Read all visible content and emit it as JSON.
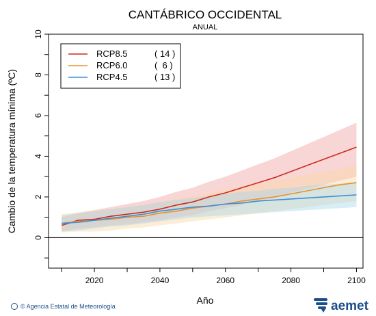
{
  "chart_data": {
    "type": "line",
    "title": "CANTÁBRICO OCCIDENTAL",
    "subtitle": "ANUAL",
    "xlabel": "Año",
    "ylabel": "Cambio de la temperatura mínima (ºC)",
    "xlim": [
      2006,
      2102
    ],
    "ylim": [
      -1.5,
      10
    ],
    "xticks": [
      2020,
      2040,
      2060,
      2080,
      2100
    ],
    "yticks": [
      0,
      2,
      4,
      6,
      8,
      10
    ],
    "zero_line": 0,
    "legend_position": "top-left",
    "series": [
      {
        "name": "RCP8.5",
        "count": "( 14 )",
        "color": "#cc2a1c",
        "band_color": "#f2a3a3",
        "x": [
          2010,
          2015,
          2020,
          2025,
          2030,
          2035,
          2040,
          2045,
          2050,
          2055,
          2060,
          2065,
          2070,
          2075,
          2080,
          2085,
          2090,
          2095,
          2100
        ],
        "mean": [
          0.6,
          0.85,
          0.9,
          1.05,
          1.15,
          1.25,
          1.4,
          1.6,
          1.75,
          2.0,
          2.2,
          2.45,
          2.7,
          2.95,
          3.25,
          3.55,
          3.85,
          4.15,
          4.45
        ],
        "low": [
          0.3,
          0.45,
          0.5,
          0.6,
          0.65,
          0.75,
          0.85,
          1.0,
          1.1,
          1.3,
          1.45,
          1.6,
          1.8,
          2.0,
          2.2,
          2.4,
          2.6,
          2.8,
          3.0
        ],
        "high": [
          1.0,
          1.2,
          1.35,
          1.5,
          1.65,
          1.8,
          2.0,
          2.25,
          2.45,
          2.75,
          3.0,
          3.3,
          3.6,
          3.9,
          4.25,
          4.6,
          4.95,
          5.3,
          5.65
        ]
      },
      {
        "name": "RCP6.0",
        "count": "(  6 )",
        "color": "#e8912c",
        "band_color": "#f9d7a3",
        "x": [
          2010,
          2015,
          2020,
          2025,
          2030,
          2035,
          2040,
          2045,
          2050,
          2055,
          2060,
          2065,
          2070,
          2075,
          2080,
          2085,
          2090,
          2095,
          2100
        ],
        "mean": [
          0.7,
          0.8,
          0.85,
          0.9,
          1.0,
          1.05,
          1.2,
          1.3,
          1.45,
          1.55,
          1.65,
          1.8,
          1.9,
          2.0,
          2.15,
          2.3,
          2.45,
          2.6,
          2.7
        ],
        "low": [
          0.25,
          0.3,
          0.3,
          0.35,
          0.45,
          0.5,
          0.6,
          0.7,
          0.8,
          0.9,
          1.0,
          1.1,
          1.2,
          1.3,
          1.4,
          1.5,
          1.6,
          1.7,
          1.8
        ],
        "high": [
          1.15,
          1.25,
          1.35,
          1.4,
          1.5,
          1.6,
          1.75,
          1.9,
          2.05,
          2.2,
          2.35,
          2.5,
          2.65,
          2.8,
          2.95,
          3.1,
          3.25,
          3.4,
          3.55
        ]
      },
      {
        "name": "RCP4.5",
        "count": "( 13 )",
        "color": "#3a8fd8",
        "band_color": "#a9d6ea",
        "x": [
          2010,
          2015,
          2020,
          2025,
          2030,
          2035,
          2040,
          2045,
          2050,
          2055,
          2060,
          2065,
          2070,
          2075,
          2080,
          2085,
          2090,
          2095,
          2100
        ],
        "mean": [
          0.7,
          0.75,
          0.85,
          0.95,
          1.05,
          1.15,
          1.3,
          1.4,
          1.5,
          1.55,
          1.65,
          1.7,
          1.8,
          1.85,
          1.9,
          1.95,
          2.0,
          2.05,
          2.1
        ],
        "low": [
          0.3,
          0.35,
          0.45,
          0.55,
          0.6,
          0.7,
          0.8,
          0.9,
          1.0,
          1.05,
          1.1,
          1.15,
          1.2,
          1.25,
          1.3,
          1.35,
          1.4,
          1.45,
          1.5
        ],
        "high": [
          1.1,
          1.2,
          1.3,
          1.4,
          1.5,
          1.6,
          1.75,
          1.85,
          1.95,
          2.05,
          2.15,
          2.25,
          2.3,
          2.4,
          2.45,
          2.55,
          2.6,
          2.65,
          2.75
        ]
      }
    ]
  },
  "footer": {
    "credit": "© Agencia Estatal de Meteorología",
    "logo_text": "aemet"
  }
}
